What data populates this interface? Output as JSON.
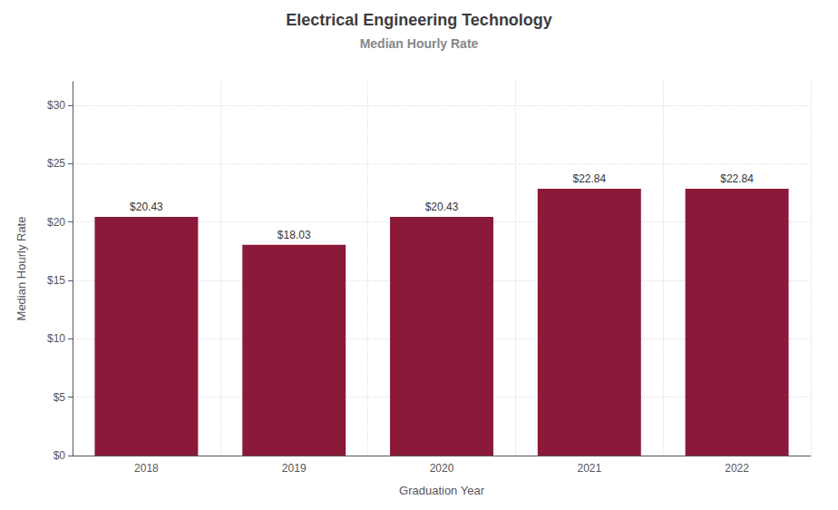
{
  "chart_data": {
    "type": "bar",
    "title": "Electrical Engineering Technology",
    "subtitle": "Median Hourly Rate",
    "xlabel": "Graduation Year",
    "ylabel": "Median Hourly Rate",
    "categories": [
      "2018",
      "2019",
      "2020",
      "2021",
      "2022"
    ],
    "values": [
      20.43,
      18.03,
      20.43,
      22.84,
      22.84
    ],
    "value_labels": [
      "$20.43",
      "$18.03",
      "$20.43",
      "$22.84",
      "$22.84"
    ],
    "color": "#8B1A3A",
    "ylim": [
      0,
      32
    ],
    "yticks": [
      {
        "value": 0,
        "label": "$0"
      },
      {
        "value": 5,
        "label": "$5"
      },
      {
        "value": 10,
        "label": "$10"
      },
      {
        "value": 15,
        "label": "$15"
      },
      {
        "value": 20,
        "label": "$20"
      },
      {
        "value": 25,
        "label": "$25"
      },
      {
        "value": 30,
        "label": "$30"
      }
    ],
    "grid": true,
    "data_labels": true
  }
}
